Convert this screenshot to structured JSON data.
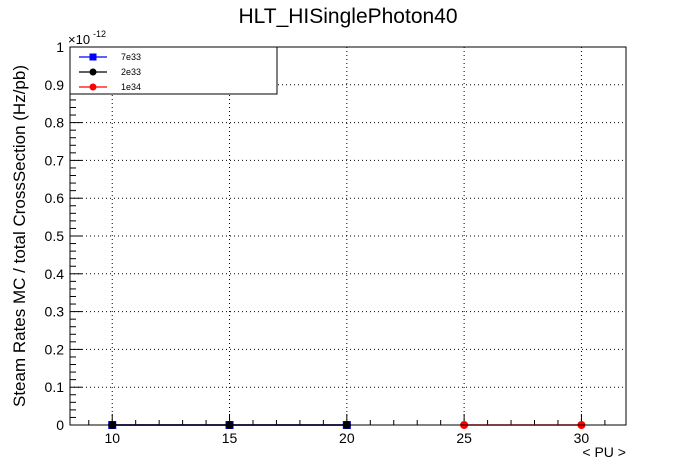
{
  "chart_data": {
    "type": "line",
    "title": "HLT_HISinglePhoton40",
    "xlabel": "< PU >",
    "ylabel": "Steam Rates MC / total CrossSection (Hz/pb)",
    "y_exponent_label": "×10",
    "y_exponent_power": "-12",
    "xlim": [
      8.2,
      31.9
    ],
    "ylim": [
      0,
      1
    ],
    "grid": true,
    "legend_position": "top-left",
    "x_ticks": [
      10,
      15,
      20,
      25,
      30
    ],
    "x_tick_labels": [
      "10",
      "15",
      "20",
      "25",
      "30"
    ],
    "y_ticks": [
      0,
      0.1,
      0.2,
      0.3,
      0.4,
      0.5,
      0.6,
      0.7,
      0.8,
      0.9,
      1
    ],
    "y_tick_labels": [
      "0",
      "0.1",
      "0.2",
      "0.3",
      "0.4",
      "0.5",
      "0.6",
      "0.7",
      "0.8",
      "0.9",
      "1"
    ],
    "series": [
      {
        "name": "7e33",
        "color": "#0000ff",
        "marker": "square",
        "x": [
          10,
          15,
          20
        ],
        "values": [
          0,
          0,
          0
        ]
      },
      {
        "name": "2e33",
        "color": "#000000",
        "marker": "circle",
        "x": [
          10,
          15,
          20
        ],
        "values": [
          0,
          0,
          0
        ]
      },
      {
        "name": "1e34",
        "color": "#ff0000",
        "marker": "circle",
        "x": [
          25,
          30
        ],
        "values": [
          0,
          0
        ]
      }
    ]
  }
}
